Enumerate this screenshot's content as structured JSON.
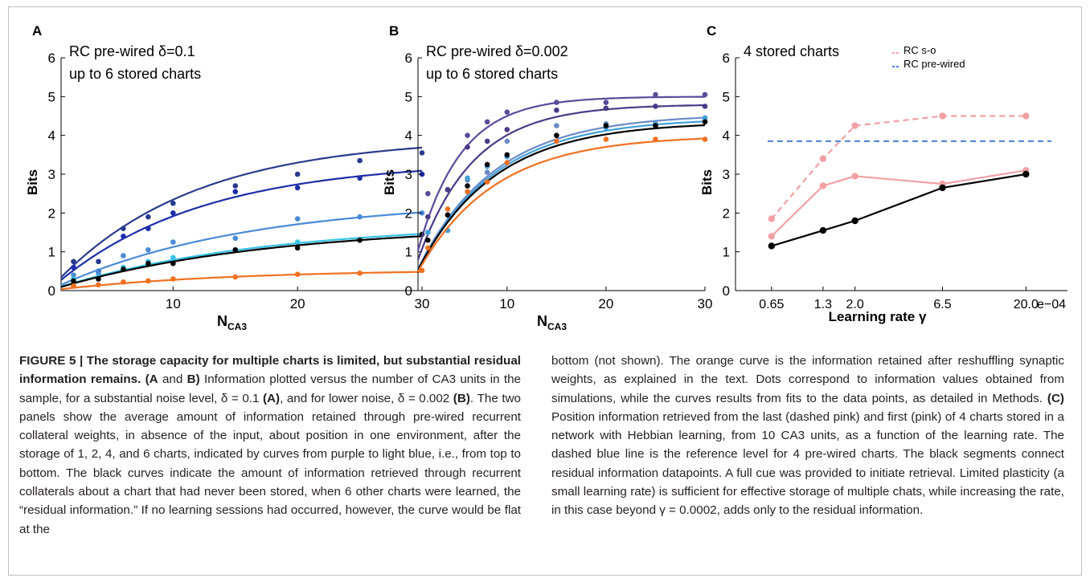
{
  "colors": {
    "dark_navy": "#2a3a8c",
    "blue": "#1c2ea8",
    "light_blue": "#4a8ad8",
    "cyan": "#35c3e8",
    "black": "#000000",
    "orange": "#f07020",
    "pink": "#f2a0a4",
    "b_purple": "#5a4a9a",
    "b_violet": "#4a3a88",
    "b_steel": "#6a8ac8",
    "b_sky": "#40a0d8",
    "ref_blue": "#4a80d8"
  },
  "panels": [
    {
      "letter": "A",
      "annotation_lines": [
        "RC pre-wired  δ=0.1",
        "up to 6 stored charts"
      ],
      "ylabel": "Bits",
      "xlabel_main": "N",
      "xlabel_sub": "CA3",
      "xlim": [
        1,
        30
      ],
      "ylim": [
        0,
        6
      ],
      "xticks": [
        10,
        20,
        30
      ],
      "yticks": [
        0,
        1,
        2,
        3,
        4,
        5,
        6
      ],
      "chart_data": {
        "type": "scatter",
        "x": [
          2,
          4,
          6,
          8,
          10,
          15,
          20,
          25,
          30
        ],
        "series": [
          {
            "color_key": "dark_navy",
            "values": [
              0.75,
              0.75,
              1.6,
              1.9,
              2.25,
              2.7,
              3.0,
              3.35,
              3.55
            ],
            "fit": [
              1,
              3.95,
              0.09
            ]
          },
          {
            "color_key": "blue",
            "values": [
              0.6,
              0.5,
              1.4,
              1.6,
              2.0,
              2.55,
              2.65,
              2.9,
              3.0
            ],
            "fit": [
              1,
              3.35,
              0.085
            ]
          },
          {
            "color_key": "light_blue",
            "values": [
              0.4,
              0.45,
              0.9,
              1.05,
              1.25,
              1.35,
              1.85,
              1.9,
              2.0
            ],
            "fit": [
              1,
              2.35,
              0.065
            ]
          },
          {
            "color_key": "cyan",
            "values": [
              0.3,
              0.35,
              0.6,
              0.75,
              0.85,
              1.05,
              1.25,
              1.3,
              1.45
            ],
            "fit": [
              1,
              1.75,
              0.06
            ]
          },
          {
            "color_key": "black",
            "values": [
              0.25,
              0.3,
              0.55,
              0.7,
              0.7,
              1.05,
              1.1,
              1.3,
              1.45
            ],
            "fit": [
              1,
              1.7,
              0.058
            ]
          },
          {
            "color_key": "orange",
            "values": [
              0.12,
              0.15,
              0.22,
              0.25,
              0.3,
              0.35,
              0.42,
              0.45,
              0.52
            ],
            "fit": [
              1,
              0.55,
              0.07
            ]
          }
        ]
      }
    },
    {
      "letter": "B",
      "annotation_lines": [
        "RC pre-wired  δ=0.002",
        "up to 6 stored charts"
      ],
      "ylabel": "Bits",
      "xlabel_main": "N",
      "xlabel_sub": "CA3",
      "xlim": [
        1,
        30
      ],
      "ylim": [
        0,
        6
      ],
      "xticks": [
        10,
        20,
        30
      ],
      "yticks": [
        0,
        1,
        2,
        3,
        4,
        5,
        6
      ],
      "chart_data": {
        "type": "scatter",
        "x": [
          2,
          4,
          6,
          8,
          10,
          15,
          20,
          25,
          30
        ],
        "series": [
          {
            "color_key": "b_purple",
            "values": [
              2.5,
              2.6,
              4.0,
              4.35,
              4.6,
              4.85,
              4.85,
              5.05,
              5.05
            ],
            "fit": [
              1,
              5.0,
              0.23
            ]
          },
          {
            "color_key": "b_violet",
            "values": [
              1.9,
              2.6,
              3.7,
              3.85,
              4.15,
              4.65,
              4.7,
              4.75,
              4.75
            ],
            "fit": [
              1,
              4.8,
              0.18
            ]
          },
          {
            "color_key": "b_steel",
            "values": [
              1.5,
              1.95,
              2.85,
              3.05,
              3.85,
              4.25,
              4.3,
              4.3,
              4.45
            ],
            "fit": [
              1,
              4.55,
              0.13
            ]
          },
          {
            "color_key": "b_sky",
            "values": [
              1.5,
              1.55,
              2.9,
              3.2,
              3.45,
              4.0,
              4.2,
              4.3,
              4.45
            ],
            "fit": [
              1,
              4.45,
              0.13
            ]
          },
          {
            "color_key": "black",
            "values": [
              1.3,
              1.95,
              2.7,
              3.25,
              3.5,
              4.0,
              4.25,
              4.25,
              4.35
            ],
            "fit": [
              1,
              4.35,
              0.13
            ]
          },
          {
            "color_key": "orange",
            "values": [
              1.1,
              2.1,
              2.55,
              2.8,
              3.3,
              3.85,
              3.9,
              3.9,
              3.9
            ],
            "fit": [
              1,
              4.0,
              0.13
            ]
          }
        ]
      }
    },
    {
      "letter": "C",
      "annotation_lines": [
        "4 stored charts"
      ],
      "legend": [
        {
          "label": "RC s-o",
          "color_key": "pink",
          "dashed": true
        },
        {
          "label": "RC pre-wired",
          "color_key": "ref_blue",
          "dashed": true
        }
      ],
      "ylabel": "Bits",
      "xlabel": "Learning rate γ",
      "ylim": [
        0,
        6
      ],
      "yticks": [
        0,
        1,
        2,
        3,
        4,
        5,
        6
      ],
      "xtick_labels": [
        "0.65",
        "1.3",
        "2.0",
        "6.5",
        "20.0",
        "e−04"
      ],
      "chart_data": {
        "type": "line",
        "x": [
          0.65,
          1.3,
          2.0,
          6.5,
          20.0
        ],
        "x_scale": "log",
        "x_unit": "e−04",
        "series": [
          {
            "color_key": "pink",
            "dashed": true,
            "markers": true,
            "values": [
              1.85,
              3.4,
              4.25,
              4.5,
              4.5
            ]
          },
          {
            "color_key": "pink",
            "dashed": false,
            "markers": true,
            "values": [
              1.4,
              2.7,
              2.95,
              2.75,
              3.1
            ]
          },
          {
            "color_key": "black",
            "dashed": false,
            "markers": true,
            "values": [
              1.15,
              1.55,
              1.8,
              2.65,
              3.0
            ]
          }
        ],
        "reference_line": {
          "color_key": "ref_blue",
          "dashed": true,
          "y": 3.85
        }
      }
    }
  ],
  "caption": {
    "left": [
      {
        "b": true,
        "t": "FIGURE 5 | The storage capacity for multiple charts is limited, but substantial residual information remains. (A"
      },
      {
        "b": false,
        "t": " and "
      },
      {
        "b": true,
        "t": "B)"
      },
      {
        "b": false,
        "t": " Information plotted versus the number of CA3 units in the sample, for a substantial noise level, δ = 0.1 "
      },
      {
        "b": true,
        "t": "(A)"
      },
      {
        "b": false,
        "t": ", and for lower noise, δ = 0.002 "
      },
      {
        "b": true,
        "t": "(B)"
      },
      {
        "b": false,
        "t": ". The two panels show the average amount of information retained through pre-wired recurrent collateral weights, in absence of the input, about position in one environment, after the storage of 1, 2, 4, and 6 charts, indicated by curves from purple to light blue, i.e., from top to bottom. The black curves indicate the amount of information retrieved through recurrent collaterals about a chart that had never been stored, when 6 other charts were learned, the “residual information.” If no learning sessions had occurred, however, the curve would be flat at the"
      }
    ],
    "right": [
      {
        "b": false,
        "t": "bottom (not shown). The orange curve is the information retained after reshuffling synaptic weights, as explained in the text. Dots correspond to information values obtained from simulations, while the curves results from fits to the data points, as detailed in Methods. "
      },
      {
        "b": true,
        "t": "(C)"
      },
      {
        "b": false,
        "t": " Position information retrieved from the last (dashed pink) and first (pink) of 4 charts stored in a network with Hebbian learning, from 10 CA3 units, as a function of the learning rate. The dashed blue line is the reference level for 4 pre-wired charts. The black segments connect residual information datapoints. A full cue was provided to initiate retrieval. Limited plasticity (a small learning rate) is sufficient for effective storage of multiple chats, while increasing the rate, in this case beyond γ = 0.0002, adds only to the residual information."
      }
    ]
  }
}
